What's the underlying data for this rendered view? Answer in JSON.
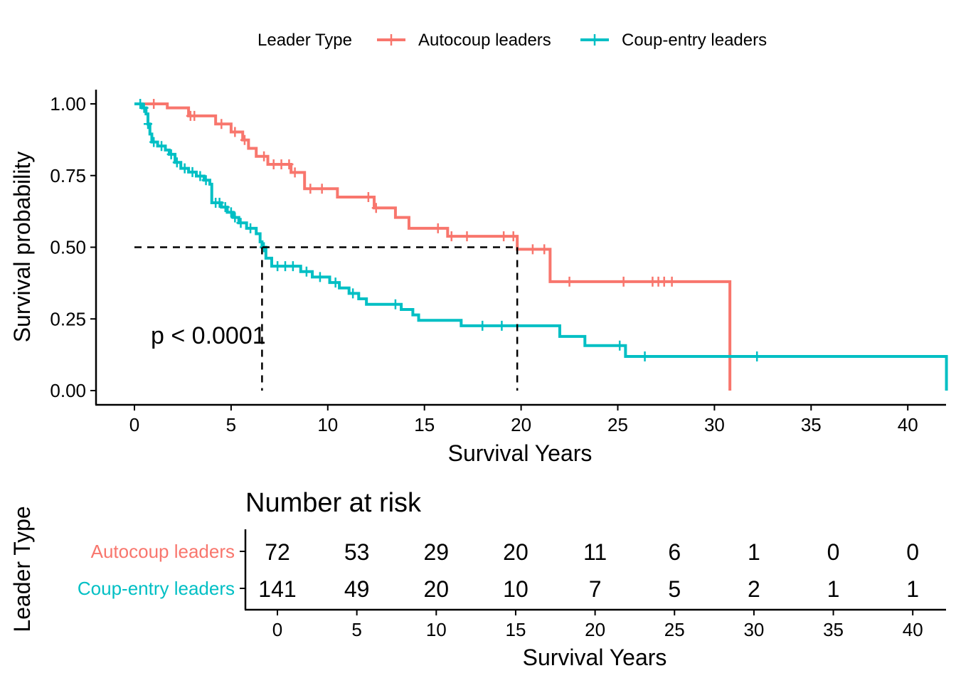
{
  "chart_data": [
    {
      "type": "line",
      "subtype": "kaplan-meier",
      "title": "",
      "xlabel": "Survival Years",
      "ylabel": "Survival probability",
      "xlim": [
        0,
        42
      ],
      "ylim": [
        0,
        1
      ],
      "x_ticks": [
        0,
        5,
        10,
        15,
        20,
        25,
        30,
        35,
        40
      ],
      "y_ticks": [
        0.0,
        0.25,
        0.5,
        0.75,
        1.0
      ],
      "y_tick_labels": [
        "0.00",
        "0.25",
        "0.50",
        "0.75",
        "1.00"
      ],
      "grid": false,
      "legend": {
        "title": "Leader Type",
        "position": "top"
      },
      "annotation": "p < 0.0001",
      "median_lines": {
        "y": 0.5,
        "x": [
          6.6,
          19.8
        ]
      },
      "series": [
        {
          "name": "Autocoup leaders",
          "color": "#F8766D",
          "steps": [
            [
              0,
              1.0
            ],
            [
              1.7,
              0.986
            ],
            [
              2.8,
              0.958
            ],
            [
              4.2,
              0.93
            ],
            [
              5.0,
              0.902
            ],
            [
              5.6,
              0.874
            ],
            [
              5.9,
              0.845
            ],
            [
              6.3,
              0.817
            ],
            [
              6.9,
              0.789
            ],
            [
              8.1,
              0.761
            ],
            [
              8.8,
              0.704
            ],
            [
              10.5,
              0.675
            ],
            [
              12.4,
              0.637
            ],
            [
              13.5,
              0.604
            ],
            [
              14.2,
              0.566
            ],
            [
              16.2,
              0.538
            ],
            [
              19.8,
              0.493
            ],
            [
              21.5,
              0.38
            ],
            [
              30.8,
              0.0
            ]
          ],
          "censor_x": [
            1.0,
            2.9,
            3.1,
            4.5,
            5.2,
            5.7,
            6.7,
            7.2,
            7.6,
            8.0,
            8.3,
            9.1,
            9.7,
            12.1,
            12.5,
            15.7,
            16.4,
            17.2,
            19.1,
            19.6,
            20.6,
            21.2,
            22.5,
            25.3,
            26.8,
            27.1,
            27.4,
            27.8
          ]
        },
        {
          "name": "Coup-entry leaders",
          "color": "#00BFC4",
          "steps": [
            [
              0,
              1.0
            ],
            [
              0.4,
              0.986
            ],
            [
              0.6,
              0.965
            ],
            [
              0.7,
              0.93
            ],
            [
              0.8,
              0.895
            ],
            [
              0.9,
              0.867
            ],
            [
              1.2,
              0.853
            ],
            [
              1.6,
              0.839
            ],
            [
              1.8,
              0.824
            ],
            [
              2.1,
              0.796
            ],
            [
              2.4,
              0.775
            ],
            [
              2.8,
              0.762
            ],
            [
              3.2,
              0.748
            ],
            [
              3.6,
              0.734
            ],
            [
              3.9,
              0.72
            ],
            [
              4.0,
              0.655
            ],
            [
              4.5,
              0.64
            ],
            [
              4.8,
              0.622
            ],
            [
              5.1,
              0.604
            ],
            [
              5.4,
              0.585
            ],
            [
              5.8,
              0.566
            ],
            [
              6.3,
              0.547
            ],
            [
              6.5,
              0.519
            ],
            [
              6.6,
              0.5
            ],
            [
              6.8,
              0.462
            ],
            [
              7.1,
              0.434
            ],
            [
              8.6,
              0.415
            ],
            [
              9.2,
              0.396
            ],
            [
              10.1,
              0.377
            ],
            [
              10.6,
              0.358
            ],
            [
              11.1,
              0.339
            ],
            [
              11.6,
              0.32
            ],
            [
              12.0,
              0.301
            ],
            [
              13.8,
              0.283
            ],
            [
              14.4,
              0.264
            ],
            [
              14.7,
              0.245
            ],
            [
              16.9,
              0.226
            ],
            [
              22.0,
              0.189
            ],
            [
              23.3,
              0.157
            ],
            [
              25.4,
              0.119
            ],
            [
              42.0,
              0.0
            ]
          ],
          "censor_x": [
            0.3,
            0.5,
            0.7,
            1.0,
            1.4,
            1.9,
            2.2,
            2.6,
            3.0,
            3.4,
            3.7,
            4.2,
            4.4,
            4.7,
            5.0,
            5.2,
            5.5,
            6.0,
            6.7,
            7.4,
            7.8,
            8.2,
            8.9,
            9.6,
            10.4,
            11.3,
            13.5,
            18.0,
            19.0,
            25.1,
            26.4,
            32.2
          ]
        }
      ]
    },
    {
      "type": "table",
      "title": "Number at risk",
      "xlabel": "Survival Years",
      "ylabel": "Leader Type",
      "x": [
        0,
        5,
        10,
        15,
        20,
        25,
        30,
        35,
        40
      ],
      "rows": [
        {
          "name": "Autocoup leaders",
          "color": "#F8766D",
          "values": [
            72,
            53,
            29,
            20,
            11,
            6,
            1,
            0,
            0
          ]
        },
        {
          "name": "Coup-entry leaders",
          "color": "#00BFC4",
          "values": [
            141,
            49,
            20,
            10,
            7,
            5,
            2,
            1,
            1
          ]
        }
      ]
    }
  ]
}
